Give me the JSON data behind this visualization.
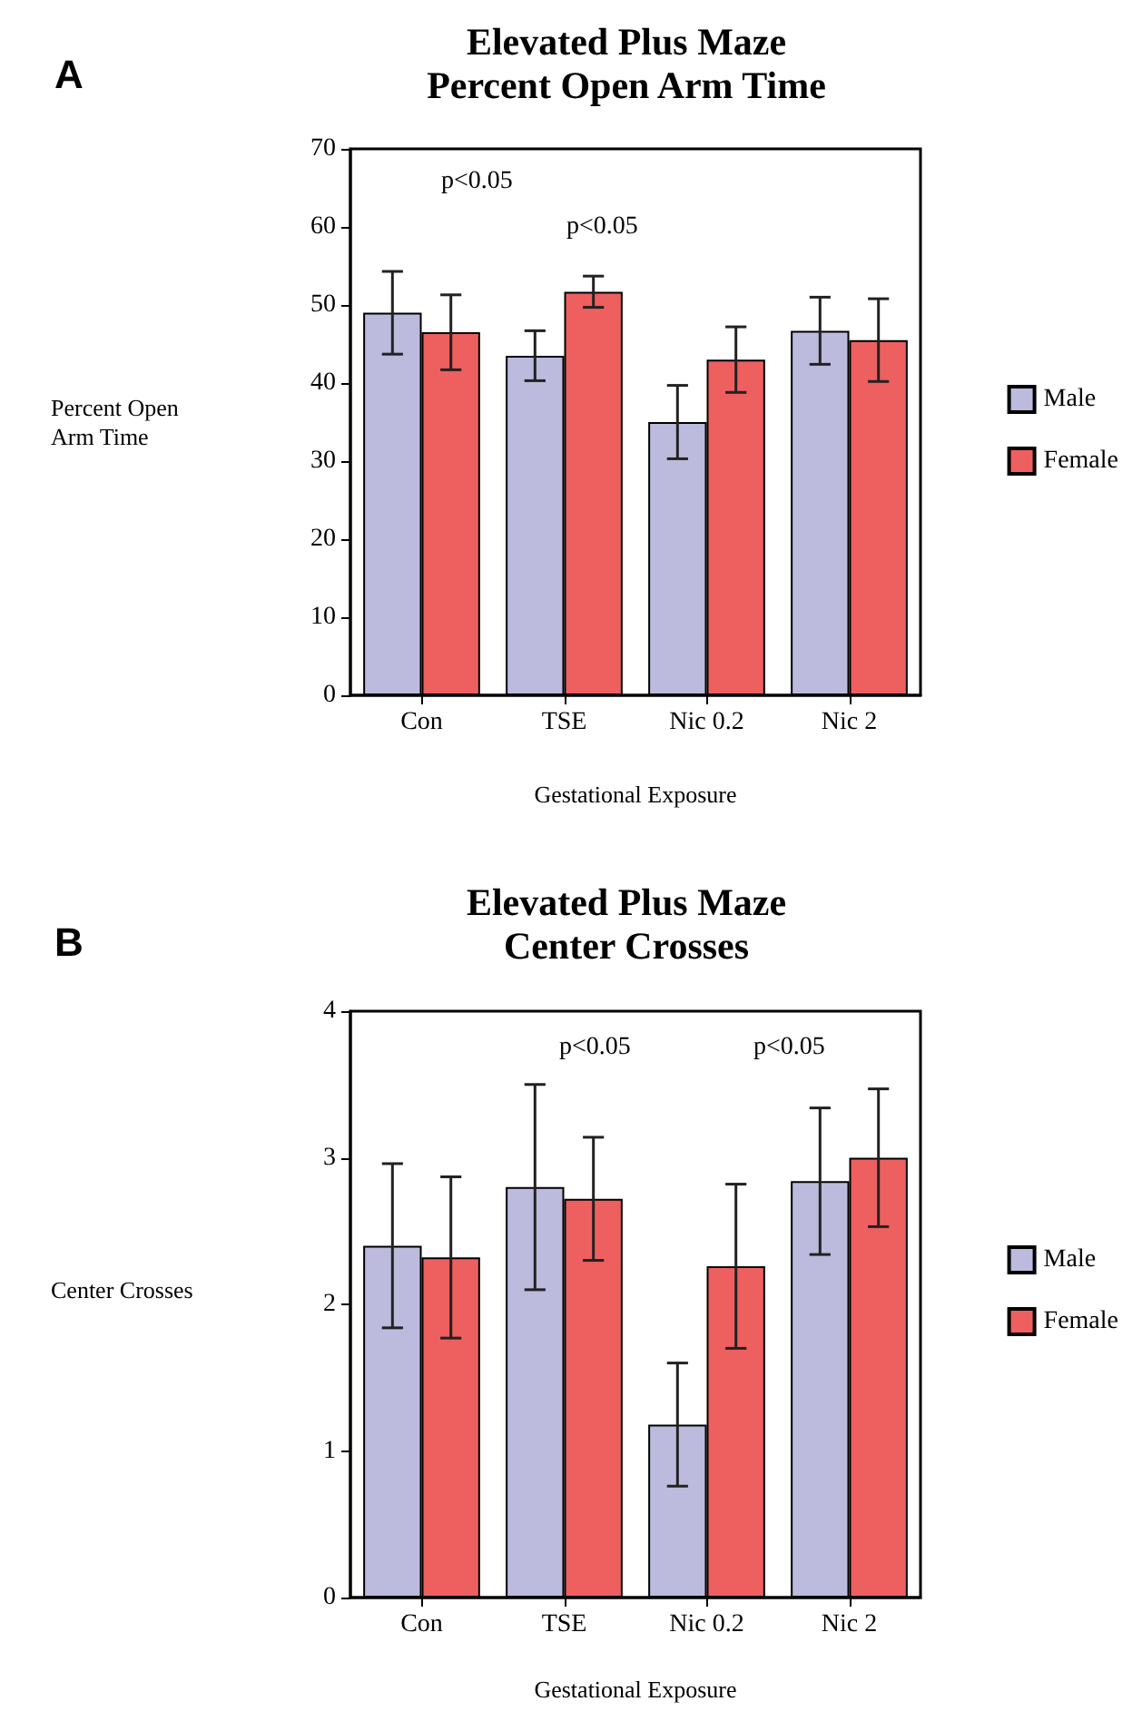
{
  "chart_data": [
    {
      "type": "bar",
      "title": "Elevated Plus Maze\nPercent Open Arm Time",
      "xlabel": "Gestational Exposure",
      "ylabel": "Percent Open Arm Time",
      "categories": [
        "Con",
        "TSE",
        "Nic 0.2",
        "Nic 2"
      ],
      "series": [
        {
          "name": "Male",
          "color": "#bcbbdd",
          "values": [
            49,
            43.5,
            35,
            46.7
          ],
          "errors": [
            5.3,
            3.2,
            4.7,
            4.3
          ]
        },
        {
          "name": "Female",
          "color": "#ee5f5f",
          "values": [
            46.5,
            51.7,
            43,
            45.5
          ],
          "errors": [
            4.8,
            2,
            4.2,
            5.3
          ]
        }
      ],
      "ylim": [
        0,
        70
      ],
      "yticks": [
        0,
        10,
        20,
        30,
        40,
        50,
        60,
        70
      ],
      "grid": false,
      "legend": "right",
      "annotations": [
        "A",
        "p<0.05",
        "p<0.05"
      ]
    },
    {
      "type": "bar",
      "title": "Elevated Plus Maze\nCenter Crosses",
      "xlabel": "Gestational Exposure",
      "ylabel": "Center Crosses",
      "categories": [
        "Con",
        "TSE",
        "Nic 0.2",
        "Nic 2"
      ],
      "series": [
        {
          "name": "Male",
          "color": "#bcbbdd",
          "values": [
            2.4,
            2.8,
            1.18,
            2.84
          ],
          "errors": [
            0.56,
            0.7,
            0.42,
            0.5
          ]
        },
        {
          "name": "Female",
          "color": "#ee5f5f",
          "values": [
            2.32,
            2.72,
            2.26,
            3.0
          ],
          "errors": [
            0.55,
            0.42,
            0.56,
            0.47
          ]
        }
      ],
      "ylim": [
        0,
        4
      ],
      "yticks": [
        0,
        1,
        2,
        3,
        4
      ],
      "grid": false,
      "legend": "right",
      "annotations": [
        "B",
        "p<0.05",
        "p<0.05"
      ]
    }
  ]
}
